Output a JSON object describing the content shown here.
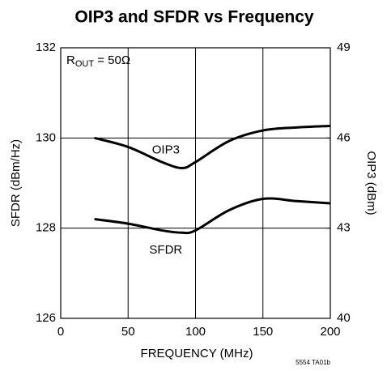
{
  "chart_data": {
    "type": "line",
    "title": "OIP3 and SFDR vs Frequency",
    "xlabel": "FREQUENCY (MHz)",
    "ylabel": "SFDR (dBm/Hz)",
    "y2label": "OIP3 (dBm)",
    "annotation": {
      "main": "R",
      "sub": "OUT",
      "rest": " = 50Ω"
    },
    "footnote": "5554 TA01b",
    "x": [
      25,
      50,
      75,
      90,
      100,
      125,
      150,
      175,
      200
    ],
    "series": [
      {
        "name": "OIP3",
        "color": "#000000",
        "axis": "y2",
        "values": [
          46.0,
          45.7,
          45.2,
          45.0,
          45.2,
          45.9,
          46.25,
          46.35,
          46.4
        ]
      },
      {
        "name": "SFDR",
        "color": "#000000",
        "values": [
          128.2,
          128.1,
          127.95,
          127.9,
          127.95,
          128.4,
          128.65,
          128.6,
          128.55
        ]
      }
    ],
    "xlim": [
      0,
      200
    ],
    "xticks": [
      0,
      50,
      100,
      150,
      200
    ],
    "ylim": [
      126,
      132
    ],
    "yticks": [
      126,
      128,
      130,
      132
    ],
    "y2lim": [
      40,
      49
    ],
    "y2ticks": [
      40,
      43,
      46,
      49
    ],
    "grid": true
  }
}
